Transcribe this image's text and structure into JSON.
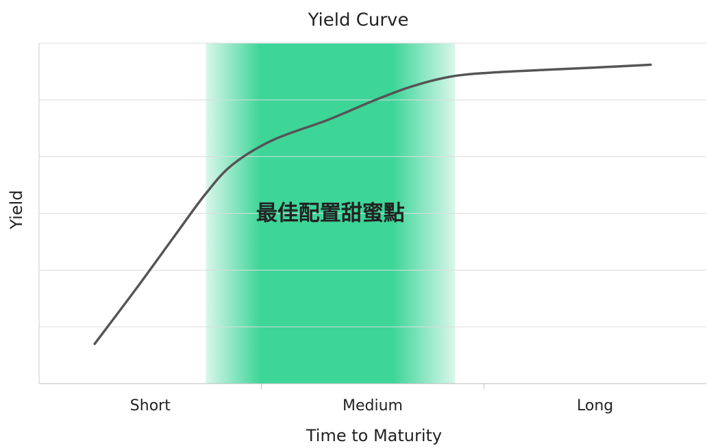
{
  "chart_data": {
    "type": "line",
    "title": "Yield Curve",
    "xlabel": "Time to Maturity",
    "ylabel": "Yield",
    "categories": [
      "Short",
      "Medium",
      "Long"
    ],
    "xlim": [
      0,
      3
    ],
    "xticks": [
      1,
      2
    ],
    "ylim": [
      0,
      6
    ],
    "yticks": [
      0,
      1,
      2,
      3,
      4,
      5,
      6
    ],
    "grid": true,
    "series": [
      {
        "color": "#555555",
        "x": [
          0.25,
          0.44,
          0.62,
          0.75,
          0.87,
          1.05,
          1.3,
          1.5,
          1.67,
          1.85,
          2.03,
          2.28,
          2.5,
          2.75
        ],
        "values": [
          0.7,
          1.69,
          2.66,
          3.35,
          3.86,
          4.29,
          4.65,
          4.98,
          5.23,
          5.41,
          5.48,
          5.53,
          5.57,
          5.62
        ]
      }
    ],
    "highlight": {
      "label": "最佳配置甜蜜點",
      "range": [
        0.75,
        1.87
      ],
      "color": "#3dd598"
    }
  }
}
